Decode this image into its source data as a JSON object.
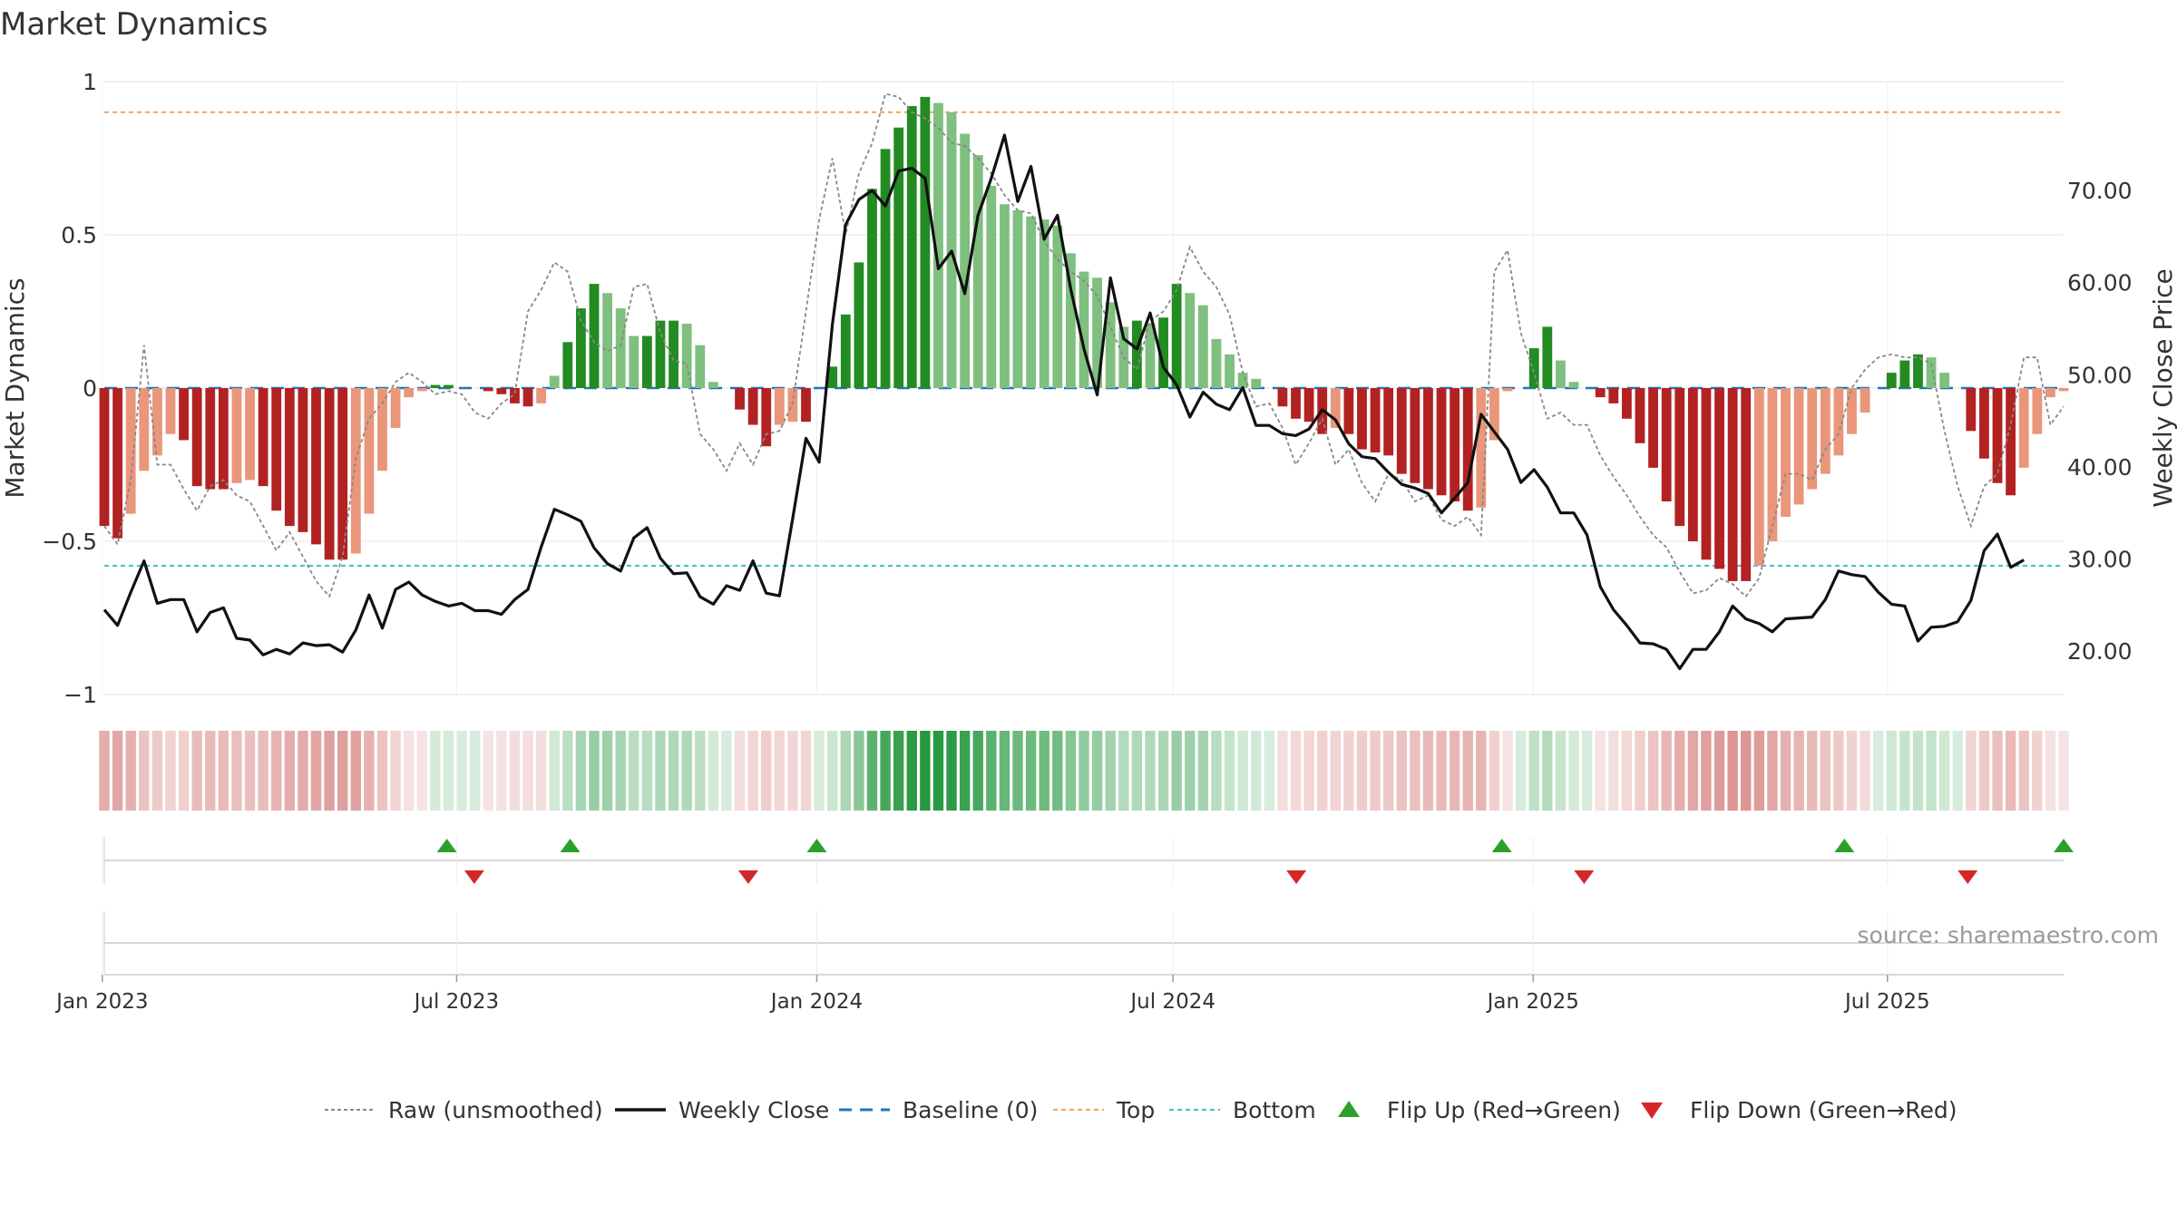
{
  "title": "Market Dynamics",
  "source": "source: sharemaestro.com",
  "chart_data": {
    "type": "bar",
    "title": "Market Dynamics",
    "ylabel": "Market Dynamics",
    "y2label": "Weekly Close Price",
    "ylim": [
      -1,
      1
    ],
    "y2lim": [
      15.3,
      81.8
    ],
    "yticks": [
      {
        "v": 1,
        "label": "1"
      },
      {
        "v": 0.5,
        "label": "0.5"
      },
      {
        "v": 0,
        "label": "0"
      },
      {
        "v": -0.5,
        "label": "−0.5"
      },
      {
        "v": -1,
        "label": "−1"
      }
    ],
    "y2ticks": [
      {
        "v": 70,
        "label": "70.00"
      },
      {
        "v": 60,
        "label": "60.00"
      },
      {
        "v": 50,
        "label": "50.00"
      },
      {
        "v": 40,
        "label": "40.00"
      },
      {
        "v": 30,
        "label": "30.00"
      },
      {
        "v": 20,
        "label": "20.00"
      }
    ],
    "x_start": "2023-01-02",
    "x_end": "2025-09-29",
    "xticks": [
      {
        "date": "2023-01-01",
        "label": "Jan 2023"
      },
      {
        "date": "2023-07-01",
        "label": "Jul 2023"
      },
      {
        "date": "2024-01-01",
        "label": "Jan 2024"
      },
      {
        "date": "2024-07-01",
        "label": "Jul 2024"
      },
      {
        "date": "2025-01-01",
        "label": "Jan 2025"
      },
      {
        "date": "2025-07-01",
        "label": "Jul 2025"
      }
    ],
    "top_level": 0.9,
    "bottom_level": -0.58,
    "baseline": 0,
    "colors": {
      "strong_green": "#228b22",
      "light_green": "#7fbf7f",
      "strong_red": "#b22222",
      "light_red": "#e9967a",
      "raw": "#888888",
      "close": "#111111",
      "baseline": "#1f77b4",
      "top": "#f4a460",
      "bottom": "#40c0d0",
      "flip_up": "#2ca02c",
      "flip_down": "#d62728"
    },
    "momentum": [
      -0.45,
      -0.49,
      -0.41,
      -0.27,
      -0.22,
      -0.15,
      -0.17,
      -0.32,
      -0.33,
      -0.33,
      -0.31,
      -0.3,
      -0.32,
      -0.4,
      -0.45,
      -0.47,
      -0.51,
      -0.56,
      -0.56,
      -0.54,
      -0.41,
      -0.27,
      -0.13,
      -0.03,
      -0.01,
      0.01,
      0.01,
      0,
      0,
      -0.01,
      -0.02,
      -0.05,
      -0.06,
      -0.05,
      0.04,
      0.15,
      0.26,
      0.34,
      0.31,
      0.26,
      0.17,
      0.17,
      0.22,
      0.22,
      0.21,
      0.14,
      0.02,
      0,
      -0.07,
      -0.12,
      -0.19,
      -0.12,
      -0.11,
      -0.11,
      0,
      0.07,
      0.24,
      0.41,
      0.65,
      0.78,
      0.85,
      0.92,
      0.95,
      0.93,
      0.9,
      0.83,
      0.76,
      0.66,
      0.6,
      0.58,
      0.56,
      0.55,
      0.53,
      0.44,
      0.38,
      0.36,
      0.28,
      0.2,
      0.22,
      0.21,
      0.23,
      0.34,
      0.31,
      0.27,
      0.16,
      0.11,
      0.05,
      0.03,
      0,
      -0.06,
      -0.1,
      -0.11,
      -0.15,
      -0.13,
      -0.15,
      -0.2,
      -0.21,
      -0.22,
      -0.28,
      -0.31,
      -0.33,
      -0.35,
      -0.37,
      -0.4,
      -0.39,
      -0.17,
      -0.01,
      0,
      0.13,
      0.2,
      0.09,
      0.02,
      0,
      -0.03,
      -0.05,
      -0.1,
      -0.18,
      -0.26,
      -0.37,
      -0.45,
      -0.5,
      -0.56,
      -0.59,
      -0.63,
      -0.63,
      -0.58,
      -0.5,
      -0.42,
      -0.38,
      -0.33,
      -0.28,
      -0.22,
      -0.15,
      -0.08,
      0,
      0.05,
      0.09,
      0.11,
      0.1,
      0.05,
      0,
      -0.14,
      -0.23,
      -0.31,
      -0.35,
      -0.26,
      -0.15,
      -0.03,
      -0.01
    ],
    "raw": [
      -0.45,
      -0.51,
      -0.3,
      0.14,
      -0.25,
      -0.25,
      -0.33,
      -0.4,
      -0.32,
      -0.3,
      -0.35,
      -0.37,
      -0.45,
      -0.53,
      -0.47,
      -0.55,
      -0.63,
      -0.68,
      -0.55,
      -0.23,
      -0.1,
      -0.05,
      0.02,
      0.05,
      0.02,
      -0.02,
      -0.01,
      -0.02,
      -0.08,
      -0.1,
      -0.05,
      -0.02,
      0.25,
      0.32,
      0.41,
      0.38,
      0.22,
      0.15,
      0.12,
      0.14,
      0.33,
      0.34,
      0.18,
      0.09,
      0.08,
      -0.15,
      -0.2,
      -0.27,
      -0.18,
      -0.25,
      -0.15,
      -0.14,
      -0.05,
      0.25,
      0.55,
      0.75,
      0.5,
      0.7,
      0.8,
      0.96,
      0.95,
      0.9,
      0.88,
      0.85,
      0.8,
      0.79,
      0.75,
      0.7,
      0.63,
      0.58,
      0.57,
      0.48,
      0.42,
      0.38,
      0.35,
      0.3,
      0.2,
      0.1,
      0.06,
      0.22,
      0.25,
      0.32,
      0.46,
      0.38,
      0.33,
      0.24,
      0.05,
      -0.06,
      -0.05,
      -0.13,
      -0.25,
      -0.18,
      -0.1,
      -0.25,
      -0.2,
      -0.31,
      -0.37,
      -0.28,
      -0.3,
      -0.37,
      -0.35,
      -0.43,
      -0.45,
      -0.42,
      -0.48,
      0.38,
      0.45,
      0.18,
      0.05,
      -0.1,
      -0.08,
      -0.12,
      -0.12,
      -0.22,
      -0.29,
      -0.35,
      -0.42,
      -0.48,
      -0.52,
      -0.6,
      -0.67,
      -0.66,
      -0.62,
      -0.64,
      -0.68,
      -0.62,
      -0.45,
      -0.28,
      -0.28,
      -0.3,
      -0.2,
      -0.15,
      0,
      0.06,
      0.1,
      0.11,
      0.1,
      0.1,
      0.08,
      -0.14,
      -0.32,
      -0.45,
      -0.32,
      -0.28,
      -0.12,
      0.1,
      0.1,
      -0.12,
      -0.06
    ],
    "close": [
      24.5,
      22.8,
      26.4,
      29.8,
      25.2,
      25.6,
      25.6,
      22.1,
      24.2,
      24.7,
      21.4,
      21.2,
      19.6,
      20.2,
      19.7,
      20.9,
      20.6,
      20.7,
      19.9,
      22.3,
      26.1,
      22.5,
      26.7,
      27.5,
      26.1,
      25.4,
      24.9,
      25.2,
      24.4,
      24.4,
      24.0,
      25.6,
      26.7,
      31.3,
      35.4,
      34.8,
      34.1,
      31.2,
      29.5,
      28.7,
      32.3,
      33.4,
      30.1,
      28.4,
      28.5,
      25.9,
      25.1,
      27.1,
      26.6,
      29.8,
      26.3,
      26.0,
      34.4,
      43.1,
      40.5,
      55.5,
      66.3,
      69.0,
      70.0,
      68.3,
      72.1,
      72.4,
      71.3,
      61.5,
      63.4,
      58.8,
      67.3,
      71.3,
      76.0,
      68.8,
      72.6,
      64.7,
      67.3,
      59.3,
      52.8,
      47.8,
      60.5,
      53.9,
      52.8,
      56.7,
      50.8,
      48.9,
      45.4,
      48.1,
      46.8,
      46.2,
      48.6,
      44.5,
      44.5,
      43.6,
      43.4,
      44.1,
      46.2,
      45.1,
      42.5,
      41.1,
      40.9,
      39.4,
      38.1,
      37.7,
      37.1,
      35.0,
      36.6,
      38.3,
      45.7,
      43.8,
      41.9,
      38.3,
      39.7,
      37.8,
      35.0,
      35.0,
      32.6,
      27.0,
      24.5,
      22.8,
      20.9,
      20.8,
      20.2,
      18.1,
      20.2,
      20.2,
      22.1,
      24.9,
      23.5,
      23.0,
      22.1,
      23.5,
      23.6,
      23.7,
      25.6,
      28.7,
      28.3,
      28.1,
      26.4,
      25.1,
      24.9,
      21.1,
      22.6,
      22.7,
      23.2,
      25.5,
      30.9,
      32.7,
      29.1,
      29.9
    ],
    "flip_up_dates": [
      "2023-06-26",
      "2023-08-28",
      "2024-01-01",
      "2024-12-16",
      "2025-06-09",
      "2025-09-29"
    ],
    "flip_down_dates": [
      "2023-07-10",
      "2023-11-27",
      "2024-09-02",
      "2025-01-27",
      "2025-08-11"
    ],
    "legend": [
      {
        "label": "Raw (unsmoothed)",
        "kind": "dotted-gray"
      },
      {
        "label": "Weekly Close",
        "kind": "solid-black"
      },
      {
        "label": "Baseline (0)",
        "kind": "dashed-blue"
      },
      {
        "label": "Top",
        "kind": "dotted-orange"
      },
      {
        "label": "Bottom",
        "kind": "dotted-cyan"
      },
      {
        "label": "Flip Up (Red→Green)",
        "kind": "tri-up"
      },
      {
        "label": "Flip Down (Green→Red)",
        "kind": "tri-down"
      }
    ]
  }
}
